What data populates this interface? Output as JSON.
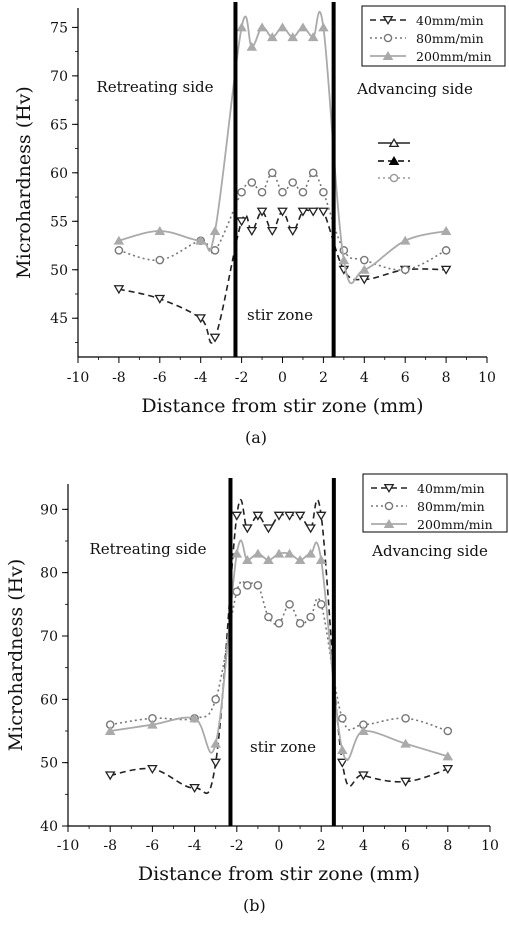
{
  "chart_data": [
    {
      "type": "line",
      "panel_label": "(a)",
      "xlabel": "Distance from stir zone (mm)",
      "ylabel": "Microhardness (Hv)",
      "xlim": [
        -10,
        10
      ],
      "ylim": [
        41,
        77
      ],
      "xticks": [
        -10,
        -8,
        -6,
        -4,
        -2,
        0,
        2,
        4,
        6,
        8,
        10
      ],
      "yticks": [
        45,
        50,
        55,
        60,
        65,
        70,
        75
      ],
      "legend": {
        "placement": "top-right",
        "entries": [
          "40mm/min",
          "80mm/min",
          "200mm/min"
        ]
      },
      "annotations": [
        "Retreating side",
        "Advancing side",
        "stir zone"
      ],
      "boundaries_x": [
        -2.3,
        2.5
      ],
      "series": [
        {
          "name": "40mm/min",
          "x": [
            -8,
            -6,
            -4,
            -3.3,
            -2,
            -1.5,
            -1,
            -0.5,
            0,
            0.5,
            1,
            1.5,
            2,
            3,
            4,
            6,
            8
          ],
          "y": [
            48,
            47,
            45,
            43,
            55,
            54,
            56,
            54,
            56,
            54,
            56,
            56,
            56,
            50,
            49,
            50,
            50
          ]
        },
        {
          "name": "80mm/min",
          "x": [
            -8,
            -6,
            -4,
            -3.3,
            -2,
            -1.5,
            -1,
            -0.5,
            0,
            0.5,
            1,
            1.5,
            2,
            3,
            4,
            6,
            8
          ],
          "y": [
            52,
            51,
            53,
            52,
            58,
            59,
            58,
            60,
            58,
            59,
            58,
            60,
            58,
            52,
            51,
            50,
            52
          ]
        },
        {
          "name": "200mm/min",
          "x": [
            -8,
            -6,
            -4,
            -3.3,
            -2,
            -1.5,
            -1,
            -0.5,
            0,
            0.5,
            1,
            1.5,
            2,
            3,
            4,
            6,
            8
          ],
          "y": [
            53,
            54,
            53,
            54,
            75,
            73,
            75,
            74,
            75,
            74,
            75,
            74,
            75,
            51,
            50,
            53,
            54
          ]
        }
      ]
    },
    {
      "type": "line",
      "panel_label": "(b)",
      "xlabel": "Distance from stir zone (mm)",
      "ylabel": "Microhardness (Hv)",
      "xlim": [
        -10,
        10
      ],
      "ylim": [
        40,
        94
      ],
      "xticks": [
        -10,
        -8,
        -6,
        -4,
        -2,
        0,
        2,
        4,
        6,
        8,
        10
      ],
      "yticks": [
        40,
        50,
        60,
        70,
        80,
        90
      ],
      "legend": {
        "placement": "top-right",
        "entries": [
          "40mm/min",
          "80mm/min",
          "200mm/min"
        ]
      },
      "annotations": [
        "Retreating side",
        "Advancing side",
        "stir zone"
      ],
      "boundaries_x": [
        -2.3,
        2.6
      ],
      "series": [
        {
          "name": "40mm/min",
          "x": [
            -8,
            -6,
            -4,
            -3,
            -2,
            -1.5,
            -1,
            -0.5,
            0,
            0.5,
            1,
            1.5,
            2,
            3,
            4,
            6,
            8
          ],
          "y": [
            48,
            49,
            46,
            50,
            89,
            87,
            89,
            87,
            89,
            89,
            89,
            87,
            89,
            50,
            48,
            47,
            49
          ]
        },
        {
          "name": "80mm/min",
          "x": [
            -8,
            -6,
            -4,
            -3,
            -2,
            -1.5,
            -1,
            -0.5,
            0,
            0.5,
            1,
            1.5,
            2,
            3,
            4,
            6,
            8
          ],
          "y": [
            56,
            57,
            57,
            60,
            77,
            78,
            78,
            73,
            72,
            75,
            72,
            73,
            75,
            57,
            56,
            57,
            55
          ]
        },
        {
          "name": "200mm/min",
          "x": [
            -8,
            -6,
            -4,
            -3,
            -2,
            -1.5,
            -1,
            -0.5,
            0,
            0.5,
            1,
            1.5,
            2,
            3,
            4,
            6,
            8
          ],
          "y": [
            55,
            56,
            57,
            53,
            83,
            82,
            83,
            82,
            83,
            83,
            82,
            83,
            82,
            52,
            55,
            53,
            51
          ]
        }
      ]
    }
  ],
  "colors": {
    "series_40": "#222222",
    "series_80": "#777777",
    "series_200": "#aaaaaa",
    "boundary": "#000000"
  }
}
